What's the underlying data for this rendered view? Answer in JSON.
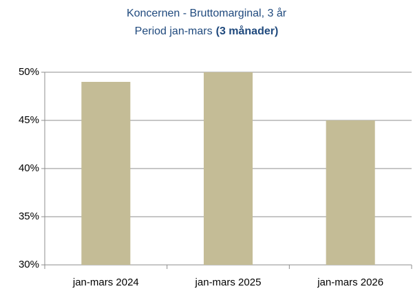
{
  "chart_data": {
    "type": "bar",
    "title": "Koncernen - Bruttomarginal, 3 år",
    "subtitle": "Period jan-mars",
    "subtitle_emphasis": "(3 månader)",
    "categories": [
      "jan-mars 2024",
      "jan-mars 2025",
      "jan-mars 2026"
    ],
    "values": [
      49,
      50,
      45
    ],
    "color": "#c4bc96",
    "ylim": [
      30,
      50
    ],
    "yticks": [
      {
        "value": 30,
        "label": "30%"
      },
      {
        "value": 35,
        "label": "35%"
      },
      {
        "value": 40,
        "label": "40%"
      },
      {
        "value": 45,
        "label": "45%"
      },
      {
        "value": 50,
        "label": "50%"
      }
    ],
    "grid": true
  }
}
